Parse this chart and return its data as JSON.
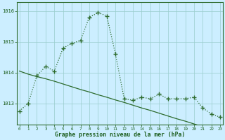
{
  "x": [
    0,
    1,
    2,
    3,
    4,
    5,
    6,
    7,
    8,
    9,
    10,
    11,
    12,
    13,
    14,
    15,
    16,
    17,
    18,
    19,
    20,
    21,
    22,
    23
  ],
  "y_curve": [
    1012.75,
    1013.0,
    1013.9,
    1014.2,
    1014.05,
    1014.8,
    1014.95,
    1015.05,
    1015.8,
    1015.95,
    1015.85,
    1014.6,
    1013.15,
    1013.1,
    1013.2,
    1013.15,
    1013.3,
    1013.15,
    1013.15,
    1013.15,
    1013.2,
    1012.85,
    1012.65,
    1012.55
  ],
  "y_linear": [
    1014.05,
    1013.95,
    1013.87,
    1013.8,
    1013.72,
    1013.63,
    1013.54,
    1013.45,
    1013.37,
    1013.28,
    1013.2,
    1013.11,
    1013.03,
    1012.94,
    1012.85,
    1012.77,
    1012.68,
    1012.59,
    1012.5,
    1012.42,
    1012.33,
    1012.24,
    1012.15,
    1012.07
  ],
  "bg_color": "#cceeff",
  "grid_color": "#99cccc",
  "line_color": "#2d6b2d",
  "ylabel_vals": [
    1013,
    1014,
    1015,
    1016
  ],
  "xlabel_vals": [
    0,
    1,
    2,
    3,
    4,
    5,
    6,
    7,
    8,
    9,
    10,
    11,
    12,
    13,
    14,
    15,
    16,
    17,
    18,
    19,
    20,
    21,
    22,
    23
  ],
  "xlabel_label": "Graphe pression niveau de la mer (hPa)",
  "ylim": [
    1012.3,
    1016.3
  ],
  "xlim": [
    -0.3,
    23.3
  ]
}
